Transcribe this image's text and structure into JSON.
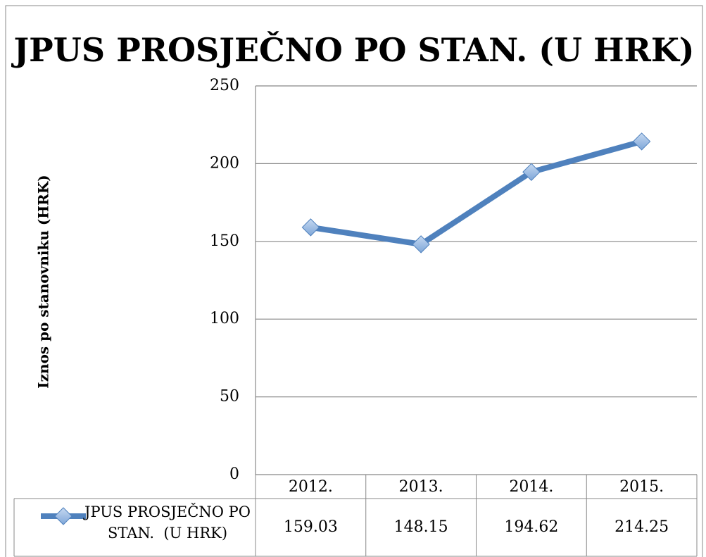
{
  "chart_data": {
    "type": "line",
    "title": "JPUS PROSJEČNO PO STAN.  (U HRK)",
    "y_label": "Iznos po stanovniku  (HRK)",
    "categories": [
      "2012.",
      "2013.",
      "2014.",
      "2015."
    ],
    "series": [
      {
        "name": "JPUS PROSJEČNO PO STAN.  (U HRK)",
        "color": "#4f81bd",
        "values": [
          159.03,
          148.15,
          194.62,
          214.25
        ]
      }
    ],
    "ylim": [
      0,
      250
    ],
    "yticks": [
      0,
      50,
      100,
      150,
      200,
      250
    ],
    "grid": true,
    "data_table": true
  }
}
